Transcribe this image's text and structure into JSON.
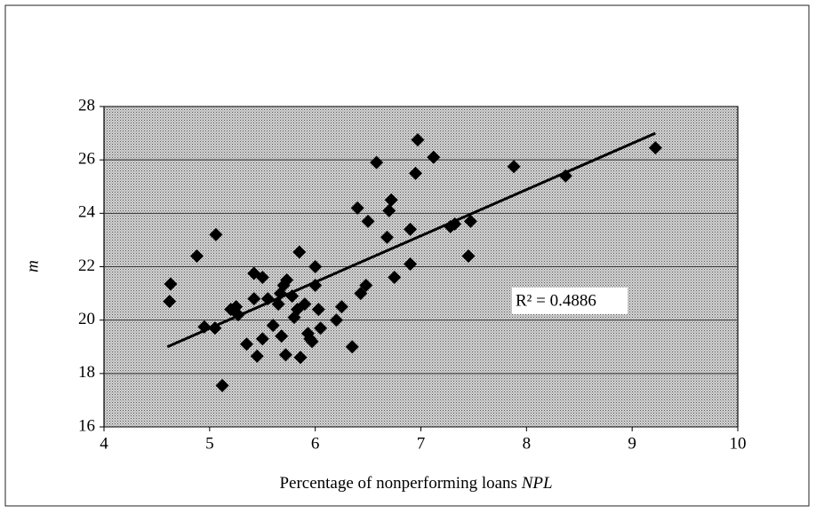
{
  "chart_data": {
    "type": "scatter",
    "xlabel": {
      "text": "Percentage of nonperforming loans",
      "var": "NPL"
    },
    "ylabel": "m",
    "annotation": "R² = 0.4886",
    "x": [
      4.62,
      4.63,
      4.88,
      4.95,
      5.05,
      5.06,
      5.12,
      5.2,
      5.25,
      5.27,
      5.35,
      5.42,
      5.42,
      5.45,
      5.5,
      5.5,
      5.55,
      5.6,
      5.65,
      5.67,
      5.68,
      5.7,
      5.72,
      5.73,
      5.78,
      5.8,
      5.83,
      5.85,
      5.86,
      5.9,
      5.93,
      5.95,
      5.97,
      6.0,
      6.0,
      6.03,
      6.05,
      6.2,
      6.25,
      6.35,
      6.4,
      6.43,
      6.48,
      6.5,
      6.58,
      6.68,
      6.7,
      6.72,
      6.75,
      6.9,
      6.9,
      6.95,
      6.97,
      7.12,
      7.28,
      7.32,
      7.45,
      7.47,
      7.88,
      8.37,
      9.22
    ],
    "series": [
      {
        "color": "#000000",
        "values": [
          20.7,
          21.35,
          22.4,
          19.75,
          19.7,
          23.2,
          17.55,
          20.4,
          20.5,
          20.2,
          19.1,
          20.8,
          21.75,
          18.65,
          21.6,
          19.3,
          20.8,
          19.8,
          20.6,
          21.0,
          19.4,
          21.3,
          18.7,
          21.5,
          20.9,
          20.1,
          20.4,
          22.55,
          18.6,
          20.6,
          19.5,
          19.3,
          19.2,
          21.3,
          22.0,
          20.4,
          19.7,
          20.0,
          20.5,
          19.0,
          24.2,
          21.0,
          21.3,
          23.7,
          25.9,
          23.1,
          24.1,
          24.5,
          21.6,
          23.4,
          22.1,
          25.5,
          26.75,
          26.1,
          23.5,
          23.6,
          22.4,
          23.7,
          25.75,
          25.4,
          26.45
        ]
      }
    ],
    "trendline": {
      "x": [
        4.6,
        9.22
      ],
      "y": [
        19.0,
        27.0
      ],
      "color": "#000000"
    },
    "xlim": [
      4,
      10
    ],
    "xticks": [
      4,
      5,
      6,
      7,
      8,
      9,
      10
    ],
    "ylim": [
      16,
      28
    ],
    "yticks": [
      16,
      18,
      20,
      22,
      24,
      26,
      28
    ],
    "grid": true
  }
}
